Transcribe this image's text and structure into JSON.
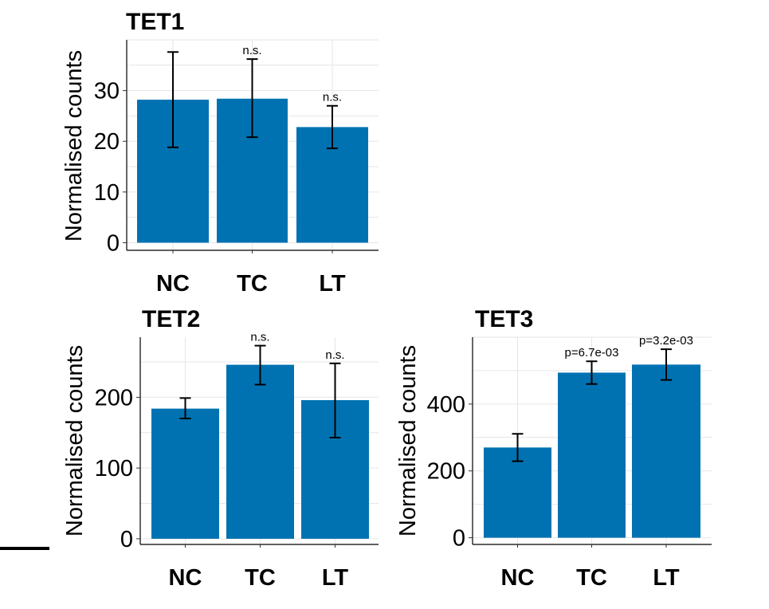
{
  "chart_data": [
    {
      "type": "bar",
      "title": "TET1",
      "ylabel": "Normalised counts",
      "categories": [
        "NC",
        "TC",
        "LT"
      ],
      "values": [
        28.2,
        28.4,
        22.8
      ],
      "error_low": [
        18.8,
        20.8,
        18.6
      ],
      "error_high": [
        37.6,
        36.2,
        27.0
      ],
      "annotations": [
        "",
        "n.s.",
        "n.s."
      ],
      "yticks": [
        0,
        10,
        20,
        30
      ],
      "ylim": [
        -1.5,
        40
      ],
      "bar_color": "#0072B2",
      "grid": true
    },
    {
      "type": "bar",
      "title": "TET2",
      "ylabel": "Normalised counts",
      "categories": [
        "NC",
        "TC",
        "LT"
      ],
      "values": [
        184,
        246,
        196
      ],
      "error_low": [
        170,
        218,
        143
      ],
      "error_high": [
        199,
        273,
        248
      ],
      "annotations": [
        "",
        "n.s.",
        "n.s."
      ],
      "yticks": [
        0,
        100,
        200
      ],
      "ylim": [
        -8,
        285
      ],
      "bar_color": "#0072B2",
      "grid": true
    },
    {
      "type": "bar",
      "title": "TET3",
      "ylabel": "Normalised counts",
      "categories": [
        "NC",
        "TC",
        "LT"
      ],
      "values": [
        270,
        494,
        518
      ],
      "error_low": [
        229,
        460,
        472
      ],
      "error_high": [
        311,
        528,
        564
      ],
      "annotations": [
        "",
        "p=6.7e-03",
        "p=3.2e-03"
      ],
      "yticks": [
        0,
        200,
        400
      ],
      "ylim": [
        -20,
        600
      ],
      "bar_color": "#0072B2",
      "grid": true
    }
  ]
}
